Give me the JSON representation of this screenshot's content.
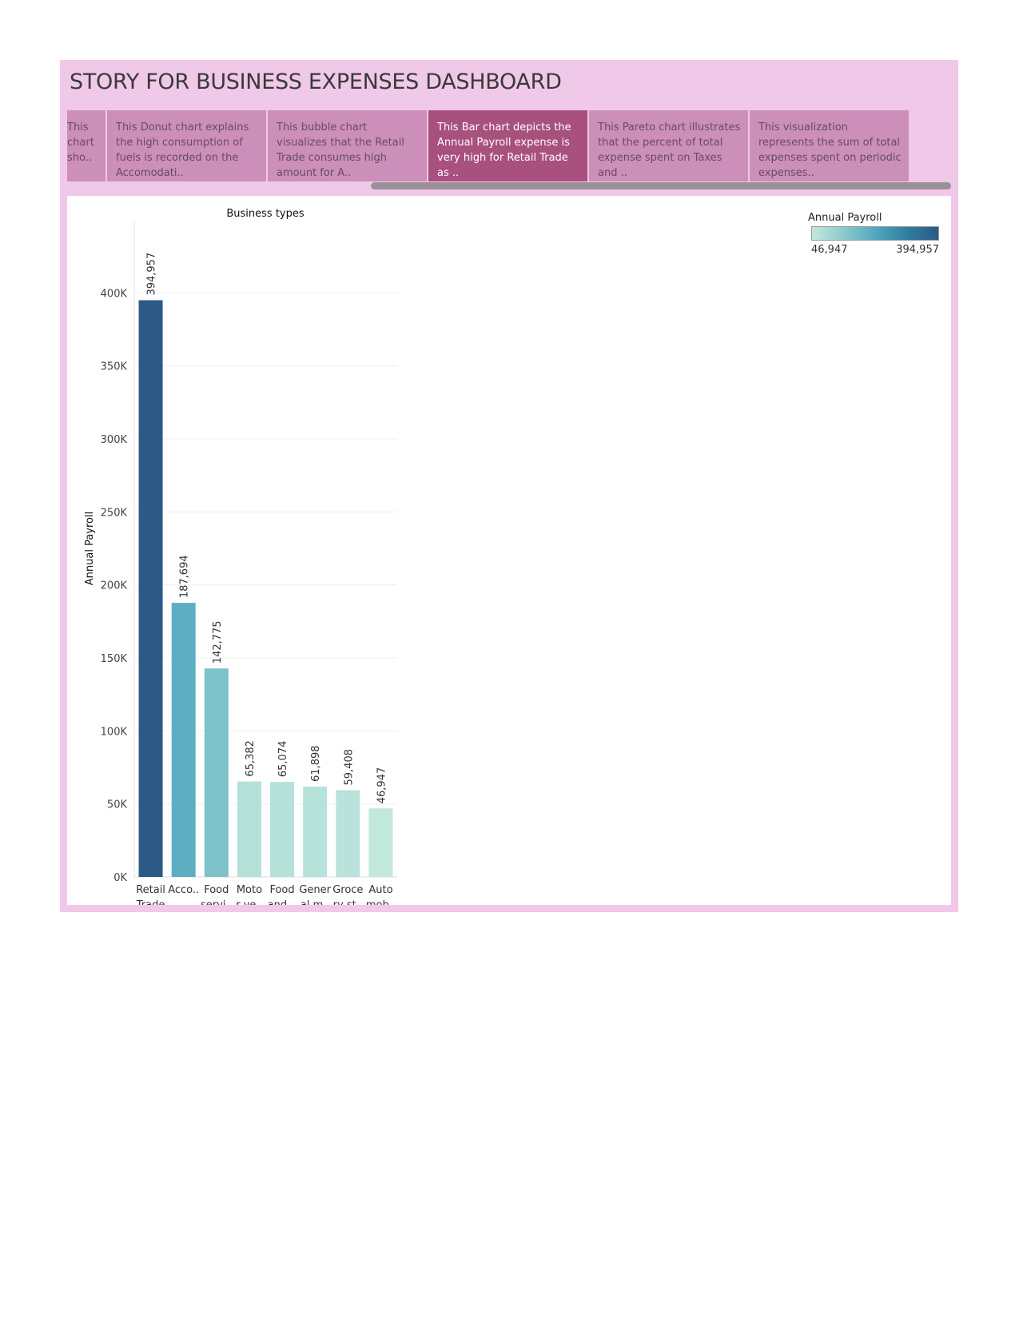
{
  "story": {
    "title": "STORY FOR BUSINESS EXPENSES DASHBOARD",
    "points": [
      {
        "caption": "This chart sho.."
      },
      {
        "caption": "This Donut chart explains the high consumption of fuels is recorded on the Accomodati.."
      },
      {
        "caption": "This bubble chart visualizes that the Retail Trade consumes high amount for A.."
      },
      {
        "caption": "This Bar chart depicts the Annual Payroll expense is very high for Retail Trade as .."
      },
      {
        "caption": "This Pareto chart illustrates that the percent of total expense spent on Taxes and .."
      },
      {
        "caption": "This visualization represents the sum of total expenses spent on periodic expenses.."
      }
    ],
    "active_index": 3
  },
  "colors": {
    "story_background": "#f0c8e8",
    "point_inactive": "#cb8fb9",
    "point_active": "#a8507e",
    "gradient_low": "#c2e8dc",
    "gradient_high": "#2c5985"
  },
  "legend": {
    "title": "Annual Payroll",
    "min_label": "46,947",
    "max_label": "394,957"
  },
  "chart_data": {
    "type": "bar",
    "title": "Business types",
    "ylabel": "Annual Payroll",
    "ylim": [
      0,
      450000
    ],
    "yticks": [
      0,
      50000,
      100000,
      150000,
      200000,
      250000,
      300000,
      350000,
      400000
    ],
    "ytick_labels": [
      "0K",
      "50K",
      "100K",
      "150K",
      "200K",
      "250K",
      "300K",
      "350K",
      "400K"
    ],
    "categories": [
      [
        "Retail",
        "Trade"
      ],
      [
        "Acco.."
      ],
      [
        "Food",
        "servi.."
      ],
      [
        "Moto",
        "r ve.."
      ],
      [
        "Food",
        "and .."
      ],
      [
        "Gener",
        "al m.."
      ],
      [
        "Groce",
        "ry st.."
      ],
      [
        "Auto",
        "mob.."
      ]
    ],
    "values": [
      394957,
      187694,
      142775,
      65382,
      65074,
      61898,
      59408,
      46947
    ],
    "value_labels": [
      "394,957",
      "187,694",
      "142,775",
      "65,382",
      "65,074",
      "61,898",
      "59,408",
      "46,947"
    ],
    "color_min": 46947,
    "color_max": 394957,
    "grid": true,
    "legend_position": "top-right"
  }
}
